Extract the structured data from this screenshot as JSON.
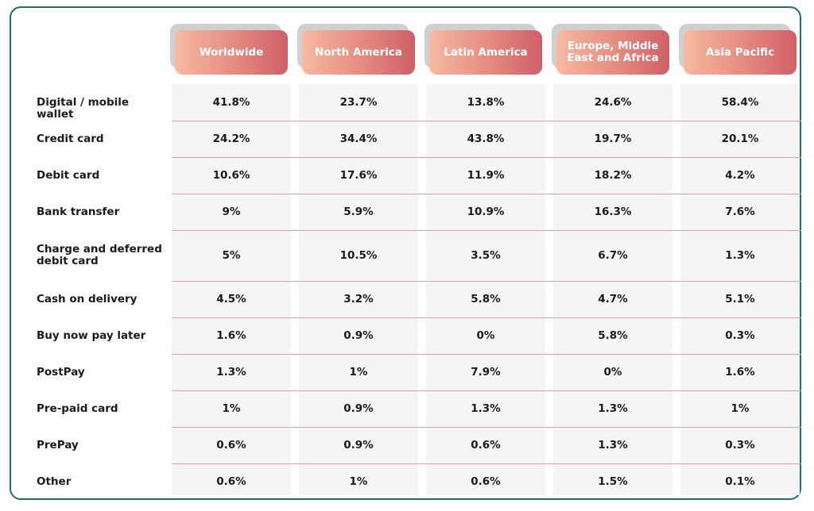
{
  "chart_data": {
    "type": "table",
    "title": "",
    "columns": [
      "Worldwide",
      "North America",
      "Latin America",
      "Europe, Middle East and Africa",
      "Asia Pacific"
    ],
    "rows": [
      {
        "label": "Digital / mobile wallet",
        "values": [
          "41.8%",
          "23.7%",
          "13.8%",
          "24.6%",
          "58.4%"
        ]
      },
      {
        "label": "Credit card",
        "values": [
          "24.2%",
          "34.4%",
          "43.8%",
          "19.7%",
          "20.1%"
        ]
      },
      {
        "label": "Debit card",
        "values": [
          "10.6%",
          "17.6%",
          "11.9%",
          "18.2%",
          "4.2%"
        ]
      },
      {
        "label": "Bank transfer",
        "values": [
          "9%",
          "5.9%",
          "10.9%",
          "16.3%",
          "7.6%"
        ]
      },
      {
        "label": "Charge and deferred debit card",
        "values": [
          "5%",
          "10.5%",
          "3.5%",
          "6.7%",
          "1.3%"
        ]
      },
      {
        "label": "Cash on delivery",
        "values": [
          "4.5%",
          "3.2%",
          "5.8%",
          "4.7%",
          "5.1%"
        ]
      },
      {
        "label": "Buy now pay later",
        "values": [
          "1.6%",
          "0.9%",
          "0%",
          "5.8%",
          "0.3%"
        ]
      },
      {
        "label": "PostPay",
        "values": [
          "1.3%",
          "1%",
          "7.9%",
          "0%",
          "1.6%"
        ]
      },
      {
        "label": "Pre-paid card",
        "values": [
          "1%",
          "0.9%",
          "1.3%",
          "1.3%",
          "1%"
        ]
      },
      {
        "label": "PrePay",
        "values": [
          "0.6%",
          "0.9%",
          "0.6%",
          "1.3%",
          "0.3%"
        ]
      },
      {
        "label": "Other",
        "values": [
          "0.6%",
          "1%",
          "0.6%",
          "1.5%",
          "0.1%"
        ]
      }
    ],
    "colors": {
      "header_gradient_start": "#f6b9a1",
      "header_gradient_end": "#cf5f68",
      "header_shadow": "#cfcfd1",
      "column_background": "#f5f5f5",
      "row_separator": "#e2a0a0",
      "frame_border": "#1f6f6b",
      "text": "#1b1b1b"
    }
  }
}
